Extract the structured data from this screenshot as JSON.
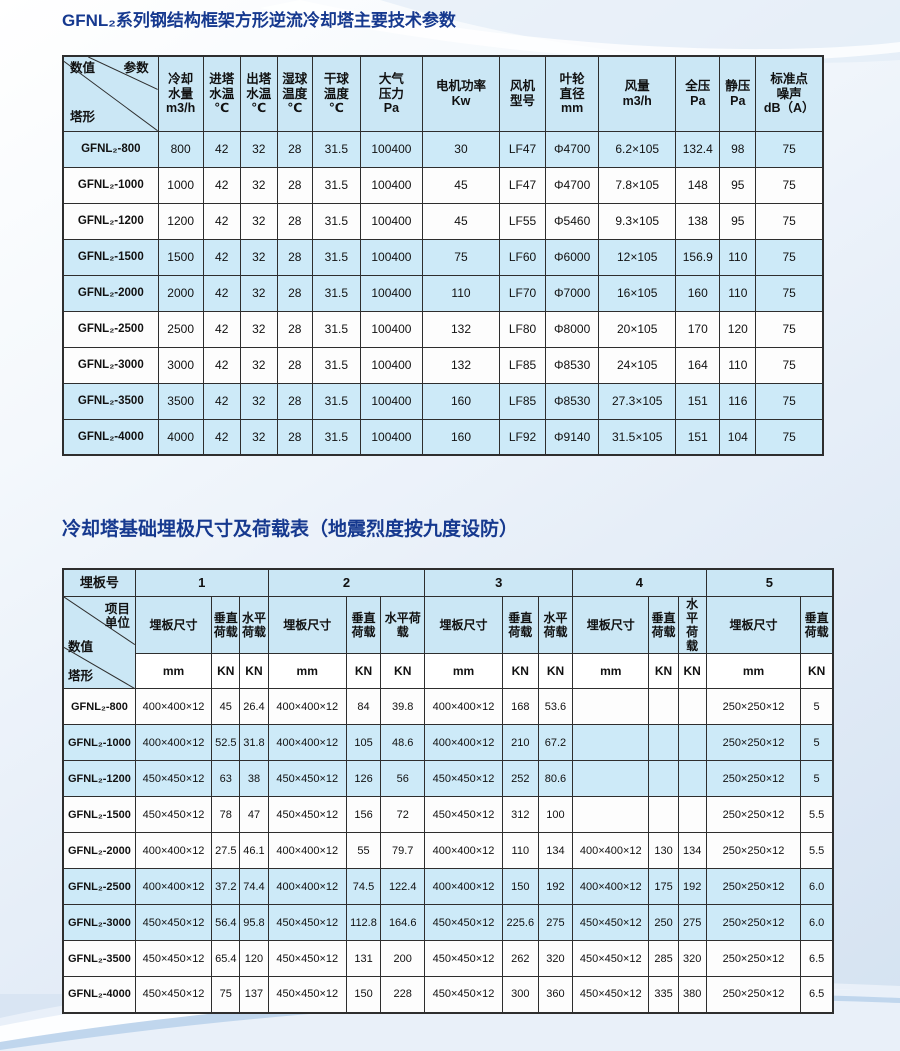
{
  "titles": {
    "table1": "GFNL₂系列钢结构框架方形逆流冷却塔主要技术参数",
    "table2": "冷却塔基础埋极尺寸及荷载表（地震烈度按九度设防）"
  },
  "colors": {
    "title_blue": "#16398f",
    "header_bg": "#cbe7f5",
    "shaded_row_bg": "#cdeaf8",
    "border": "#2e2e2e"
  },
  "table1": {
    "corner": {
      "top_left": "数值",
      "top_right": "参数",
      "bottom_left": "塔形"
    },
    "headers": [
      "冷却\n水量\nm3/h",
      "进塔\n水温\n℃",
      "出塔\n水温\n℃",
      "湿球\n温度\n℃",
      "干球\n温度\n℃",
      "大气\n压力\nPa",
      "电机功率\nKw",
      "风机\n型号",
      "叶轮\n直径\nmm",
      "风量\nm3/h",
      "全压\nPa",
      "静压\nPa",
      "标准点\n噪声\ndB（A）"
    ],
    "rows": [
      [
        "GFNL₂-800",
        "800",
        "42",
        "32",
        "28",
        "31.5",
        "100400",
        "30",
        "LF47",
        "Φ4700",
        "6.2×105",
        "132.4",
        "98",
        "75"
      ],
      [
        "GFNL₂-1000",
        "1000",
        "42",
        "32",
        "28",
        "31.5",
        "100400",
        "45",
        "LF47",
        "Φ4700",
        "7.8×105",
        "148",
        "95",
        "75"
      ],
      [
        "GFNL₂-1200",
        "1200",
        "42",
        "32",
        "28",
        "31.5",
        "100400",
        "45",
        "LF55",
        "Φ5460",
        "9.3×105",
        "138",
        "95",
        "75"
      ],
      [
        "GFNL₂-1500",
        "1500",
        "42",
        "32",
        "28",
        "31.5",
        "100400",
        "75",
        "LF60",
        "Φ6000",
        "12×105",
        "156.9",
        "110",
        "75"
      ],
      [
        "GFNL₂-2000",
        "2000",
        "42",
        "32",
        "28",
        "31.5",
        "100400",
        "110",
        "LF70",
        "Φ7000",
        "16×105",
        "160",
        "110",
        "75"
      ],
      [
        "GFNL₂-2500",
        "2500",
        "42",
        "32",
        "28",
        "31.5",
        "100400",
        "132",
        "LF80",
        "Φ8000",
        "20×105",
        "170",
        "120",
        "75"
      ],
      [
        "GFNL₂-3000",
        "3000",
        "42",
        "32",
        "28",
        "31.5",
        "100400",
        "132",
        "LF85",
        "Φ8530",
        "24×105",
        "164",
        "110",
        "75"
      ],
      [
        "GFNL₂-3500",
        "3500",
        "42",
        "32",
        "28",
        "31.5",
        "100400",
        "160",
        "LF85",
        "Φ8530",
        "27.3×105",
        "151",
        "116",
        "75"
      ],
      [
        "GFNL₂-4000",
        "4000",
        "42",
        "32",
        "28",
        "31.5",
        "100400",
        "160",
        "LF92",
        "Φ9140",
        "31.5×105",
        "151",
        "104",
        "75"
      ]
    ],
    "row_shaded": [
      true,
      false,
      false,
      true,
      true,
      false,
      false,
      true,
      true
    ]
  },
  "table2": {
    "plate_no_label": "埋板号",
    "plate_numbers": [
      "1",
      "2",
      "3",
      "4",
      "5"
    ],
    "corner": {
      "top_right": "项目\n单位",
      "middle_left": "数值",
      "bottom_left": "塔形"
    },
    "sub_headers": [
      "埋板尺寸",
      "垂直\n荷载",
      "水平\n荷载",
      "埋板尺寸",
      "垂直\n荷载",
      "水平荷\n载",
      "埋板尺寸",
      "垂直\n荷载",
      "水平\n荷载",
      "埋板尺寸",
      "垂直\n荷载",
      "水\n平\n荷\n载",
      "埋板尺寸",
      "垂直\n荷载"
    ],
    "units": [
      "mm",
      "KN",
      "KN",
      "mm",
      "KN",
      "KN",
      "mm",
      "KN",
      "KN",
      "mm",
      "KN",
      "KN",
      "mm",
      "KN"
    ],
    "rows": [
      [
        "GFNL₂-800",
        "400×400×12",
        "45",
        "26.4",
        "400×400×12",
        "84",
        "39.8",
        "400×400×12",
        "168",
        "53.6",
        "",
        "",
        "",
        "250×250×12",
        "5"
      ],
      [
        "GFNL₂-1000",
        "400×400×12",
        "52.5",
        "31.8",
        "400×400×12",
        "105",
        "48.6",
        "400×400×12",
        "210",
        "67.2",
        "",
        "",
        "",
        "250×250×12",
        "5"
      ],
      [
        "GFNL₂-1200",
        "450×450×12",
        "63",
        "38",
        "450×450×12",
        "126",
        "56",
        "450×450×12",
        "252",
        "80.6",
        "",
        "",
        "",
        "250×250×12",
        "5"
      ],
      [
        "GFNL₂-1500",
        "450×450×12",
        "78",
        "47",
        "450×450×12",
        "156",
        "72",
        "450×450×12",
        "312",
        "100",
        "",
        "",
        "",
        "250×250×12",
        "5.5"
      ],
      [
        "GFNL₂-2000",
        "400×400×12",
        "27.5",
        "46.1",
        "400×400×12",
        "55",
        "79.7",
        "400×400×12",
        "110",
        "134",
        "400×400×12",
        "130",
        "134",
        "250×250×12",
        "5.5"
      ],
      [
        "GFNL₂-2500",
        "400×400×12",
        "37.2",
        "74.4",
        "400×400×12",
        "74.5",
        "122.4",
        "400×400×12",
        "150",
        "192",
        "400×400×12",
        "175",
        "192",
        "250×250×12",
        "6.0"
      ],
      [
        "GFNL₂-3000",
        "450×450×12",
        "56.4",
        "95.8",
        "450×450×12",
        "112.8",
        "164.6",
        "450×450×12",
        "225.6",
        "275",
        "450×450×12",
        "250",
        "275",
        "250×250×12",
        "6.0"
      ],
      [
        "GFNL₂-3500",
        "450×450×12",
        "65.4",
        "120",
        "450×450×12",
        "131",
        "200",
        "450×450×12",
        "262",
        "320",
        "450×450×12",
        "285",
        "320",
        "250×250×12",
        "6.5"
      ],
      [
        "GFNL₂-4000",
        "450×450×12",
        "75",
        "137",
        "450×450×12",
        "150",
        "228",
        "450×450×12",
        "300",
        "360",
        "450×450×12",
        "335",
        "380",
        "250×250×12",
        "6.5"
      ]
    ],
    "row_shaded": [
      false,
      true,
      true,
      false,
      false,
      true,
      true,
      false,
      false
    ]
  }
}
